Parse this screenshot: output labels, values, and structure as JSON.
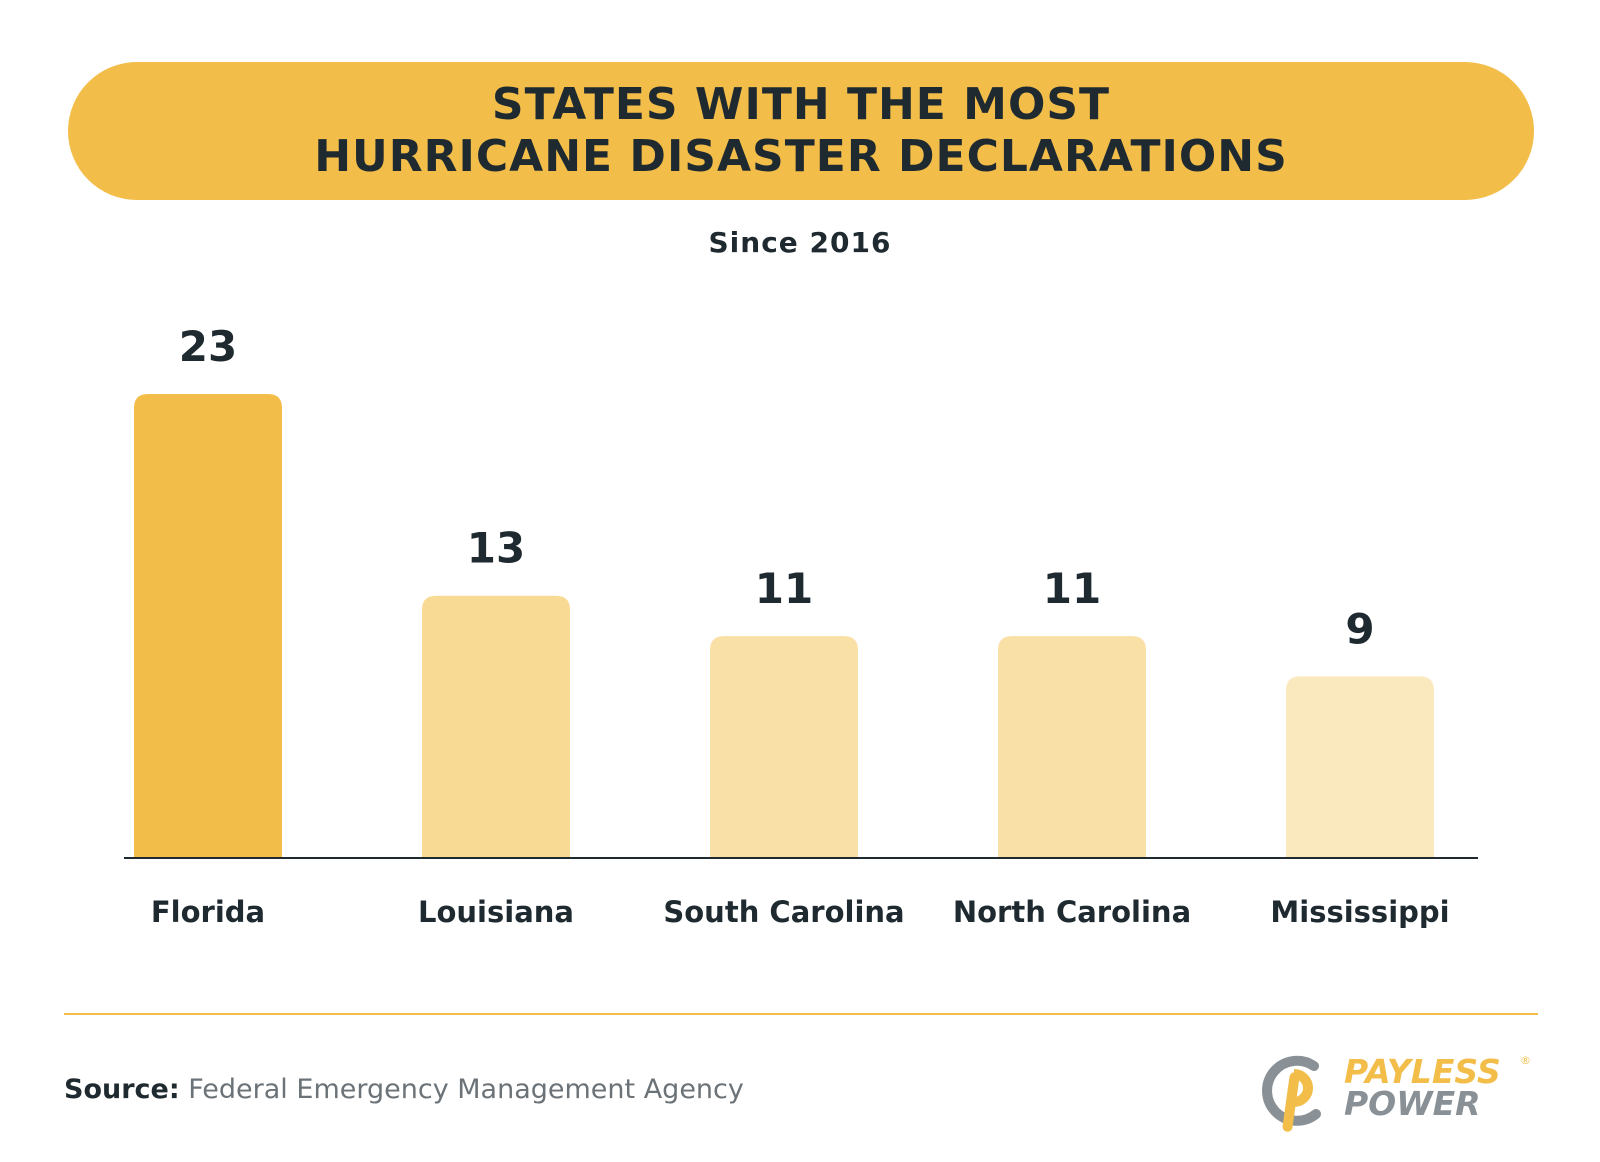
{
  "title": {
    "line1": "STATES WITH THE MOST",
    "line2": "HURRICANE DISASTER DECLARATIONS"
  },
  "subtitle": "Since 2016",
  "chart_data": {
    "type": "bar",
    "categories": [
      "Florida",
      "Louisiana",
      "South Carolina",
      "North Carolina",
      "Mississippi"
    ],
    "values": [
      23,
      13,
      11,
      11,
      9
    ],
    "title": "STATES WITH THE MOST HURRICANE DISASTER DECLARATIONS",
    "subtitle": "Since 2016",
    "ylim": [
      0,
      23
    ],
    "grid": false,
    "data_labels": true,
    "colors": {
      "highlight": "#f3bd4a",
      "Louisiana": "#f8da95",
      "South Carolina": "#f9e0a7",
      "North Carolina": "#f9e0a7",
      "Mississippi": "#fae8bf",
      "axis": "#1f2a30"
    }
  },
  "source": {
    "label": "Source:",
    "text": "Federal Emergency Management Agency"
  },
  "logo": {
    "line1": "PAYLESS",
    "line2": "POWER",
    "reg": "®",
    "icon": "payless-power-logo-icon"
  }
}
